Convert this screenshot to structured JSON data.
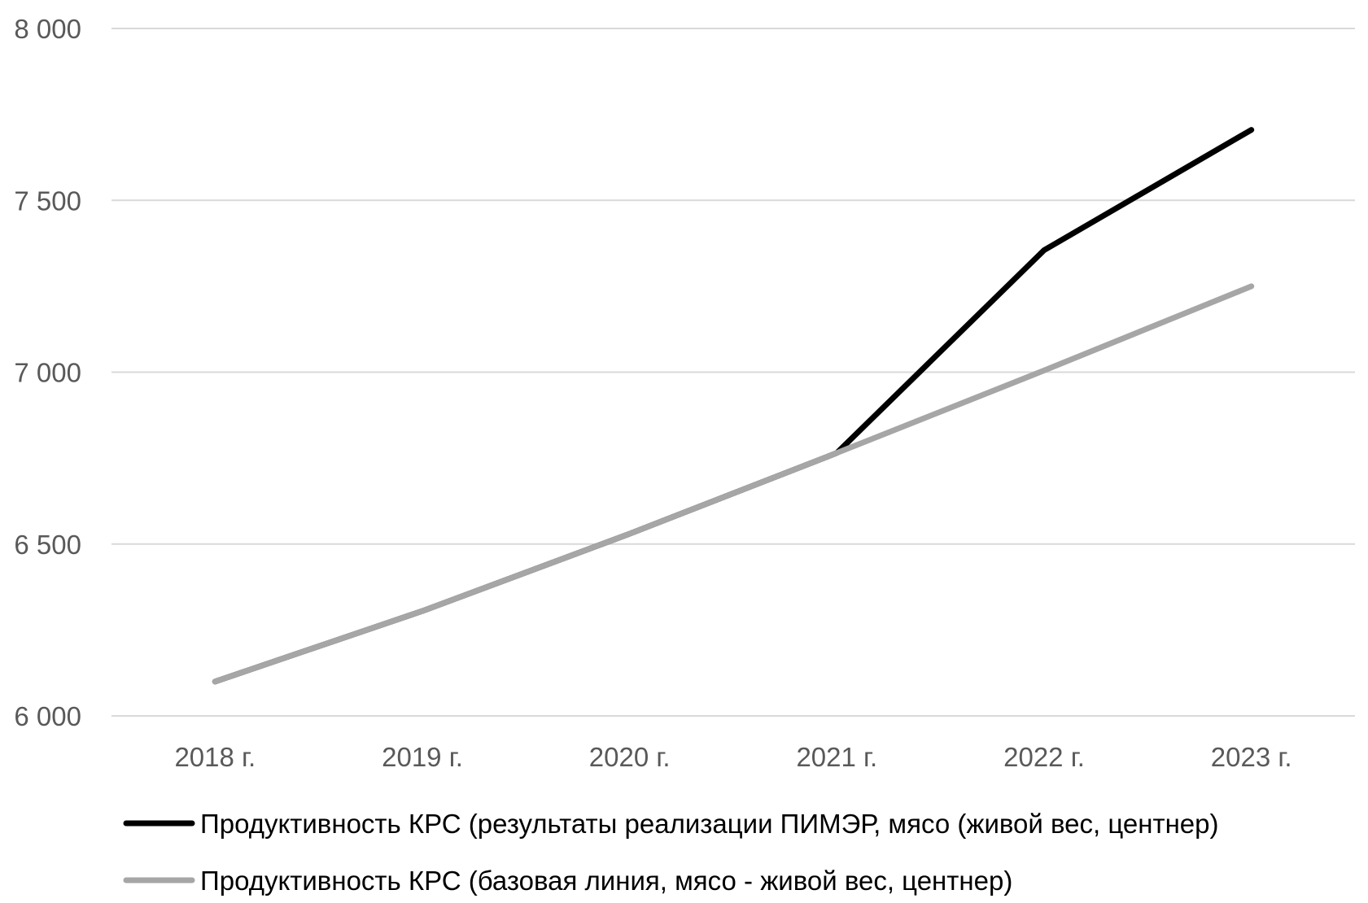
{
  "chart_data": {
    "type": "line",
    "title": "",
    "xlabel": "",
    "ylabel": "",
    "categories": [
      "2018 г.",
      "2019 г.",
      "2020 г.",
      "2021 г.",
      "2022 г.",
      "2023 г."
    ],
    "ylim": [
      6000,
      8000
    ],
    "yticks": [
      6000,
      6500,
      7000,
      7500,
      8000
    ],
    "ytick_labels": [
      "6 000",
      "6 500",
      "7 000",
      "7 500",
      "8 000"
    ],
    "grid": true,
    "legend_position": "bottom",
    "series": [
      {
        "name": "Продуктивность КРС (результаты реализации ПИМЭР, мясо (живой вес, центнер)",
        "values": [
          6100,
          6305,
          6530,
          6765,
          7355,
          7705
        ],
        "color": "#000000"
      },
      {
        "name": "Продуктивность КРС (базовая линия, мясо - живой вес, центнер)",
        "values": [
          6100,
          6305,
          6530,
          6765,
          7005,
          7250
        ],
        "color": "#a6a6a6"
      }
    ],
    "grid_color": "#d9d9d9",
    "label_color": "#595959"
  }
}
